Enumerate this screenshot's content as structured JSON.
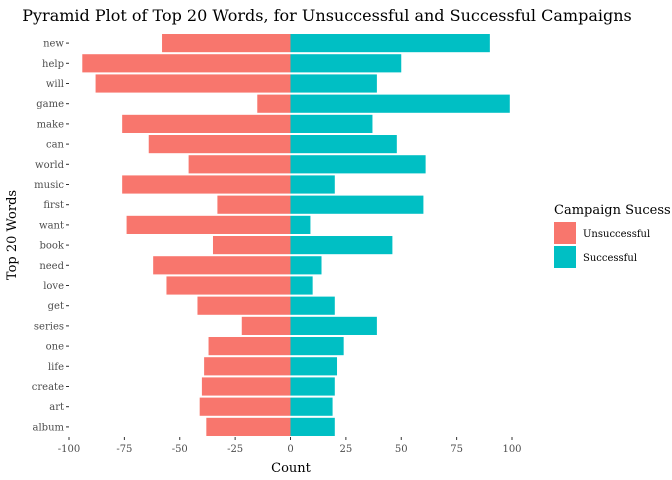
{
  "chart_data": {
    "type": "bar",
    "orientation": "horizontal",
    "title": "Pyramid Plot of Top 20 Words, for Unsuccessful and Successful Campaigns",
    "xlabel": "Count",
    "ylabel": "Top 20 Words",
    "xlim": [
      -100,
      100
    ],
    "xticks": [
      -100,
      -75,
      -50,
      -25,
      0,
      25,
      50,
      75,
      100
    ],
    "grid": false,
    "legend": {
      "title": "Campaign Sucess",
      "placement": "right"
    },
    "categories": [
      "new",
      "help",
      "will",
      "game",
      "make",
      "can",
      "world",
      "music",
      "first",
      "want",
      "book",
      "need",
      "love",
      "get",
      "series",
      "one",
      "life",
      "create",
      "art",
      "album"
    ],
    "series": [
      {
        "name": "Unsuccessful",
        "color": "#F8766D",
        "values": [
          -58,
          -94,
          -88,
          -15,
          -76,
          -64,
          -46,
          -76,
          -33,
          -74,
          -35,
          -62,
          -56,
          -42,
          -22,
          -37,
          -39,
          -40,
          -41,
          -38
        ]
      },
      {
        "name": "Successful",
        "color": "#00BFC4",
        "values": [
          90,
          50,
          39,
          99,
          37,
          48,
          61,
          20,
          60,
          9,
          46,
          14,
          10,
          20,
          39,
          24,
          21,
          20,
          19,
          20
        ]
      }
    ]
  }
}
